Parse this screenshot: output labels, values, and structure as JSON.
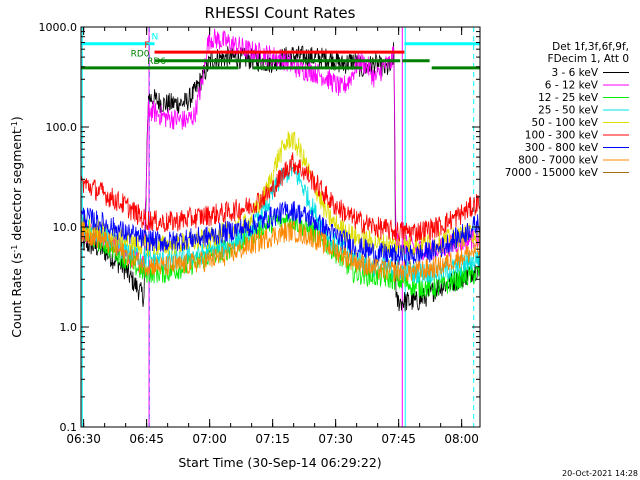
{
  "chart_data": {
    "type": "line",
    "title": "RHESSI Count Rates",
    "xlabel": "Start Time (30-Sep-14 06:29:22)",
    "ylabel_parts": [
      "Count Rate (s",
      "-1",
      " detector segment",
      "-1",
      ")"
    ],
    "yscale": "log",
    "ylim": [
      0.1,
      1000
    ],
    "xlim_minutes": [
      0,
      95
    ],
    "x_tick_labels": [
      {
        "min": 0.63,
        "label": "06:30"
      },
      {
        "min": 15.63,
        "label": "06:45"
      },
      {
        "min": 30.63,
        "label": "07:00"
      },
      {
        "min": 45.63,
        "label": "07:15"
      },
      {
        "min": 60.63,
        "label": "07:30"
      },
      {
        "min": 75.63,
        "label": "07:45"
      },
      {
        "min": 90.63,
        "label": "08:00"
      }
    ],
    "y_tick_labels": [
      {
        "value": 0.1,
        "label": "0.1"
      },
      {
        "value": 1,
        "label": "1.0"
      },
      {
        "value": 10,
        "label": "10.0"
      },
      {
        "value": 100,
        "label": "100.0"
      },
      {
        "value": 1000,
        "label": "1000.0"
      }
    ],
    "legend_header": [
      "Det 1f,3f,6f,9f,",
      "FDecim 1, Att 0"
    ],
    "series": [
      {
        "name": "3 - 6 keV",
        "color": "#000000",
        "x": [
          0,
          5,
          10,
          14.9,
          15,
          16,
          20,
          25,
          27,
          29,
          31,
          35,
          40,
          45,
          50,
          55,
          60,
          62,
          65,
          67,
          70,
          72,
          74,
          74.5,
          75,
          80,
          82,
          85,
          90,
          95
        ],
        "y": [
          7,
          6,
          4,
          2,
          2,
          200,
          170,
          175,
          220,
          320,
          480,
          500,
          480,
          440,
          520,
          500,
          480,
          420,
          460,
          380,
          430,
          380,
          390,
          600,
          1.8,
          1.8,
          2,
          2.5,
          3,
          4
        ]
      },
      {
        "name": "6 - 12 keV",
        "color": "#ff00ff",
        "x": [
          0,
          5,
          10,
          14.9,
          15,
          16,
          20,
          25,
          27,
          29,
          30,
          31,
          35,
          40,
          45,
          48,
          50,
          52,
          55,
          58,
          60,
          62,
          64,
          66,
          68,
          70,
          72,
          74,
          74.5,
          75,
          80,
          85,
          90,
          95
        ],
        "y": [
          9,
          8,
          6,
          4,
          4,
          150,
          125,
          115,
          130,
          300,
          650,
          780,
          700,
          580,
          520,
          480,
          420,
          380,
          360,
          320,
          280,
          240,
          300,
          450,
          420,
          300,
          400,
          450,
          600,
          7,
          6,
          6,
          7,
          8
        ]
      },
      {
        "name": "12 - 25 keV",
        "color": "#00ee00",
        "x": [
          0,
          5,
          10,
          15,
          20,
          25,
          30,
          35,
          40,
          45,
          50,
          55,
          60,
          65,
          70,
          75,
          80,
          85,
          90,
          95
        ],
        "y": [
          9,
          7,
          5,
          3.5,
          3.5,
          4,
          5,
          6,
          8,
          11,
          12,
          9,
          6,
          3.5,
          3.2,
          3,
          2.5,
          2.5,
          3,
          3.5
        ]
      },
      {
        "name": "25 - 50 keV",
        "color": "#00e0e0",
        "x": [
          0,
          5,
          10,
          15,
          20,
          25,
          30,
          35,
          40,
          44,
          47,
          50,
          52,
          55,
          58,
          60,
          65,
          70,
          75,
          80,
          85,
          90,
          95
        ],
        "y": [
          10,
          8,
          6,
          5,
          4.5,
          5,
          5.5,
          6.5,
          9,
          15,
          28,
          38,
          30,
          16,
          9,
          7,
          5,
          4,
          3.8,
          3.5,
          3.5,
          4,
          5
        ]
      },
      {
        "name": "50 - 100 keV",
        "color": "#dddd00",
        "x": [
          0,
          5,
          10,
          15,
          20,
          25,
          30,
          35,
          40,
          44,
          47,
          49,
          50,
          52,
          55,
          58,
          60,
          65,
          70,
          75,
          80,
          85,
          90,
          95
        ],
        "y": [
          11,
          9,
          7.5,
          6.5,
          6.5,
          7,
          7.5,
          9,
          11,
          22,
          50,
          70,
          78,
          60,
          30,
          15,
          11,
          8,
          7,
          6.5,
          6.5,
          7,
          8,
          9
        ]
      },
      {
        "name": "100 - 300 keV",
        "color": "#ff0000",
        "x": [
          0,
          5,
          10,
          15,
          20,
          25,
          30,
          35,
          40,
          45,
          48,
          50,
          52,
          55,
          60,
          65,
          70,
          75,
          80,
          85,
          90,
          95
        ],
        "y": [
          28,
          22,
          17,
          12,
          11,
          12,
          13,
          14,
          16,
          22,
          33,
          45,
          40,
          30,
          17,
          12,
          10,
          9,
          9,
          10,
          13,
          18
        ]
      },
      {
        "name": "300 - 800 keV",
        "color": "#0000ff",
        "x": [
          0,
          5,
          10,
          15,
          20,
          25,
          30,
          35,
          40,
          45,
          50,
          55,
          60,
          65,
          70,
          75,
          80,
          85,
          90,
          95
        ],
        "y": [
          13,
          11,
          9,
          7.5,
          7,
          7.5,
          8,
          9,
          10,
          12.5,
          15,
          12,
          8.5,
          6.5,
          5.5,
          5.2,
          5.2,
          6,
          8,
          11
        ]
      },
      {
        "name": "800 - 7000 keV",
        "color": "#ff8800",
        "x": [
          0,
          5,
          10,
          15,
          20,
          25,
          30,
          35,
          40,
          45,
          50,
          55,
          60,
          65,
          70,
          75,
          80,
          85,
          90,
          95
        ],
        "y": [
          9,
          7.5,
          5.5,
          4.2,
          4,
          4.2,
          4.6,
          5.3,
          6.5,
          8,
          9.2,
          8,
          6,
          4.6,
          3.8,
          3.6,
          3.6,
          4,
          5,
          6
        ]
      },
      {
        "name": "7000 - 15000 keV",
        "color": "#a06e10",
        "x": [],
        "y": []
      }
    ],
    "flags": [
      {
        "label": "N",
        "color": "#00ffff",
        "value": 680,
        "segments": [
          [
            0,
            17.5
          ],
          [
            77,
            95
          ]
        ]
      },
      {
        "label": "F",
        "color": "#ff0000",
        "value": 560,
        "segments": [
          [
            17.5,
            77
          ]
        ]
      },
      {
        "label": "RD0",
        "color": "#008000",
        "value": 460,
        "segments": [
          [
            17.5,
            76
          ],
          [
            76.5,
            83
          ]
        ]
      },
      {
        "label": "RD6",
        "color": "#008000",
        "value": 390,
        "segments": [
          [
            0,
            37.5
          ],
          [
            41,
            67
          ],
          [
            83.5,
            95
          ]
        ]
      }
    ],
    "vertical_markers": [
      {
        "min": 0.3,
        "color": "#00ffff",
        "style": "solid"
      },
      {
        "min": 16.3,
        "color": "#00ffff",
        "style": "dashed"
      },
      {
        "min": 77.2,
        "color": "#00ffff",
        "style": "solid"
      },
      {
        "min": 93.5,
        "color": "#00ffff",
        "style": "dashed"
      },
      {
        "min": 16.2,
        "color": "#ff00ff",
        "style": "solid"
      },
      {
        "min": 76.5,
        "color": "#ff00ff",
        "style": "solid"
      }
    ],
    "timestamp": "20-Oct-2021 14:28"
  }
}
